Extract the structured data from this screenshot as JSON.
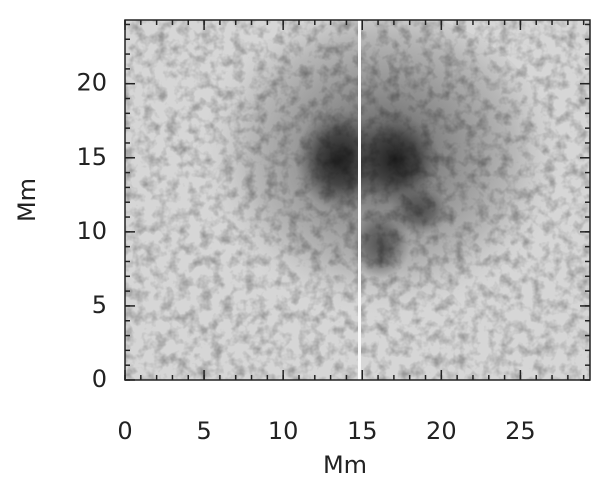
{
  "chart_data": {
    "type": "image",
    "xlabel": "Mm",
    "ylabel": "Mm",
    "xlim": [
      0,
      29.4
    ],
    "ylim": [
      0,
      24.3
    ],
    "xticks": [
      0,
      5,
      10,
      15,
      20,
      25
    ],
    "yticks": [
      0,
      5,
      10,
      15,
      20
    ],
    "minor_tick_step": 1
  }
}
